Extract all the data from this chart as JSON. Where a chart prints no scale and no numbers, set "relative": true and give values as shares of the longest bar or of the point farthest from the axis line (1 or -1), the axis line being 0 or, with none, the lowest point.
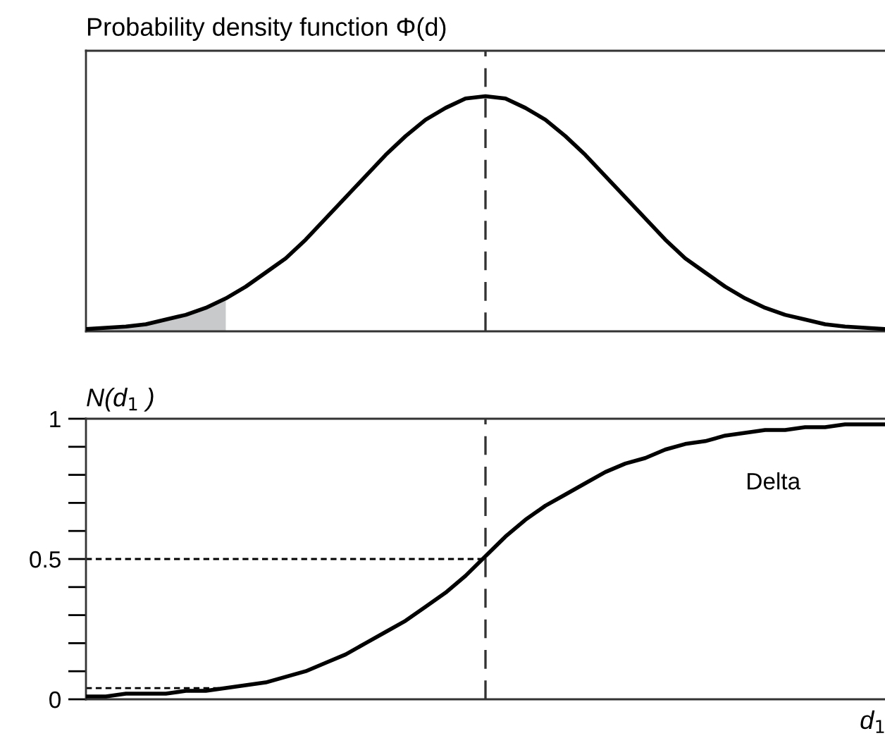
{
  "chart_data": [
    {
      "type": "line",
      "title": "Probability density function Φ(d)",
      "relative": true,
      "tick_labels": false,
      "grid": false,
      "legend": false,
      "categories": [
        null,
        null,
        null,
        null,
        null,
        null,
        null,
        null,
        null,
        null,
        null,
        null,
        null,
        null,
        null,
        null,
        null,
        null,
        null,
        null,
        null,
        null,
        null,
        null,
        null,
        null,
        null,
        null,
        null,
        null,
        null,
        null,
        null,
        null,
        null,
        null,
        null,
        null,
        null,
        null,
        null
      ],
      "series": [
        {
          "type": "area",
          "color": "#c8c9cb",
          "values": [
            0.01,
            0.015,
            0.02,
            0.03,
            0.05,
            0.07,
            0.1,
            0.14,
            null,
            null,
            null,
            null,
            null,
            null,
            null,
            null,
            null,
            null,
            null,
            null,
            null,
            null,
            null,
            null,
            null,
            null,
            null,
            null,
            null,
            null,
            null,
            null,
            null,
            null,
            null,
            null,
            null,
            null,
            null,
            null,
            null
          ]
        },
        {
          "color": "#000000",
          "values": [
            0.01,
            0.015,
            0.02,
            0.03,
            0.05,
            0.07,
            0.1,
            0.14,
            0.19,
            0.25,
            0.31,
            0.39,
            0.48,
            0.57,
            0.66,
            0.75,
            0.83,
            0.9,
            0.95,
            0.99,
            1,
            0.99,
            0.95,
            0.9,
            0.83,
            0.75,
            0.66,
            0.57,
            0.48,
            0.39,
            0.31,
            0.25,
            0.19,
            0.14,
            0.1,
            0.07,
            0.05,
            0.03,
            0.02,
            0.015,
            0.01
          ]
        }
      ]
    },
    {
      "type": "line",
      "ylabel": "N(d$_{1}$ )",
      "xlabel": "d$_{1}$",
      "tick_labels": "y",
      "grid": false,
      "legend": false,
      "annotations": [
        "Delta"
      ],
      "categories": [
        null,
        null,
        null,
        null,
        null,
        null,
        null,
        null,
        null,
        null,
        null,
        null,
        null,
        null,
        null,
        null,
        null,
        null,
        null,
        null,
        null,
        null,
        null,
        null,
        null,
        null,
        null,
        null,
        null,
        null,
        null,
        null,
        null,
        null,
        null,
        null,
        null,
        null,
        null,
        null,
        null
      ],
      "ylim": [
        0,
        1
      ],
      "yticks": [
        0,
        {
          "value": 0.1,
          "label": null
        },
        {
          "value": 0.2,
          "label": null
        },
        {
          "value": 0.3,
          "label": null
        },
        {
          "value": 0.4,
          "label": null
        },
        0.5,
        {
          "value": 0.6,
          "label": null
        },
        {
          "value": 0.7,
          "label": null
        },
        {
          "value": 0.8,
          "label": null
        },
        {
          "value": 0.9,
          "label": null
        },
        1
      ],
      "series": [
        {
          "color": "#000000",
          "values": [
            0.01,
            0.01,
            0.02,
            0.02,
            0.02,
            0.03,
            0.03,
            0.04,
            0.05,
            0.06,
            0.08,
            0.1,
            0.13,
            0.16,
            0.2,
            0.24,
            0.28,
            0.33,
            0.38,
            0.44,
            0.51,
            0.58,
            0.64,
            0.69,
            0.73,
            0.77,
            0.81,
            0.84,
            0.86,
            0.89,
            0.91,
            0.92,
            0.94,
            0.95,
            0.96,
            0.96,
            0.97,
            0.97,
            0.98,
            0.98,
            0.98
          ]
        }
      ],
      "ref_lines": [
        {
          "axis": "y",
          "value": 0.5,
          "line_style": "dotted",
          "color": "#000000"
        },
        {
          "axis": "y",
          "value": 0.04,
          "line_style": "dotted",
          "color": "#000000"
        }
      ]
    }
  ]
}
